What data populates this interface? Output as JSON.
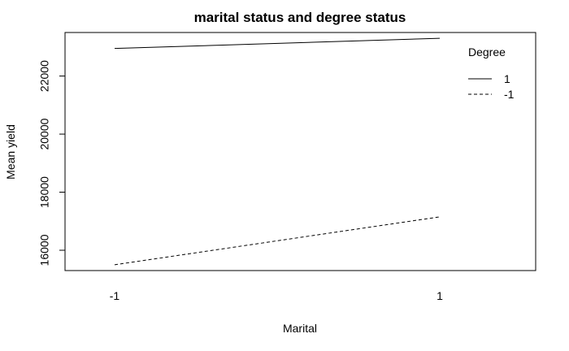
{
  "chart_data": {
    "type": "line",
    "title": "marital status and degree status",
    "xlabel": "Marital",
    "ylabel": "Mean yield",
    "x": [
      "-1",
      "1"
    ],
    "ylim": [
      15300,
      23500
    ],
    "yticks": [
      16000,
      18000,
      20000,
      22000
    ],
    "grid": false,
    "legend": {
      "title": "Degree",
      "placement": "top-right"
    },
    "series": [
      {
        "name": "1",
        "line_style": "solid",
        "values": [
          22950,
          23300
        ]
      },
      {
        "name": "-1",
        "line_style": "dashed",
        "values": [
          15500,
          17150
        ]
      }
    ],
    "colors": {
      "line": "#000000",
      "frame": "#000000"
    }
  }
}
